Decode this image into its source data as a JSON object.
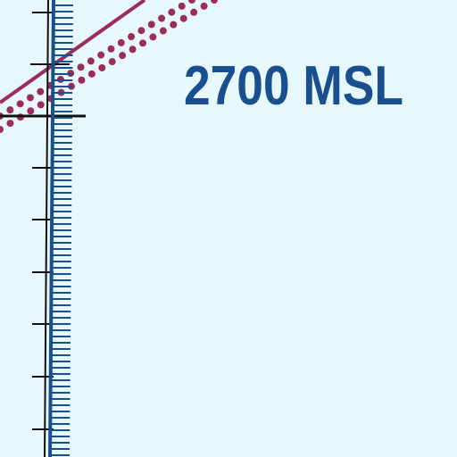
{
  "map": {
    "altitude_label": "2700 MSL"
  },
  "colors": {
    "background": "#e6f8fb",
    "boundary_blue": "#1a4f8f",
    "route_magenta": "#9c2d5a",
    "tick_black": "#111111"
  }
}
